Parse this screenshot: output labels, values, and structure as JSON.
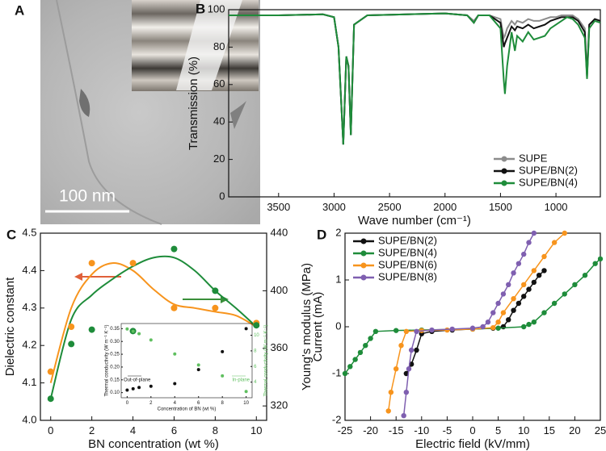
{
  "chart_data": [
    {
      "type": "image",
      "label": "A",
      "scale_bar": "100 nm"
    },
    {
      "type": "line",
      "label": "B",
      "x_label": "Wave number (cm⁻¹)",
      "y_label": "Transmission (%)",
      "x": [
        3950,
        3500,
        3100,
        3000,
        2960,
        2917,
        2890,
        2870,
        2849,
        2820,
        2700,
        2000,
        1800,
        1740,
        1700,
        1600,
        1500,
        1470,
        1460,
        1440,
        1400,
        1370,
        1350,
        1300,
        1250,
        1200,
        1150,
        1100,
        1050,
        1000,
        950,
        900,
        850,
        800,
        740,
        720,
        700,
        650,
        600
      ],
      "xlim": [
        3950,
        600
      ],
      "xticks": [
        3500,
        3000,
        2500,
        2000,
        1500,
        1000
      ],
      "ylim": [
        0,
        100
      ],
      "yticks": [
        0,
        20,
        40,
        60,
        80,
        100
      ],
      "legend": "lower right",
      "series": [
        {
          "name": "SUPE",
          "color": "#8c8c8c",
          "style": "line",
          "values": [
            97,
            97,
            97.5,
            96,
            80,
            28,
            75,
            70,
            33,
            92,
            97,
            98,
            97,
            94,
            97,
            97,
            95,
            85,
            86,
            90,
            94,
            92,
            94,
            93,
            95,
            94,
            94,
            95,
            96,
            96,
            97,
            97,
            97,
            95,
            90,
            65,
            92,
            95,
            94
          ]
        },
        {
          "name": "SUPE/BN(2)",
          "color": "#111111",
          "style": "line",
          "values": [
            97,
            97,
            97.5,
            96,
            80,
            28,
            75,
            70,
            33,
            92,
            97,
            98,
            97,
            93,
            97,
            97,
            93,
            80,
            82,
            85,
            91,
            89,
            91,
            90,
            92,
            90,
            91,
            92,
            94,
            95,
            96,
            96,
            96,
            94,
            88,
            64,
            92,
            95,
            94
          ]
        },
        {
          "name": "SUPE/BN(4)",
          "color": "#1e8c3a",
          "style": "line",
          "values": [
            97,
            97,
            97.5,
            96,
            80,
            28,
            75,
            70,
            33,
            92,
            97,
            98,
            97,
            93,
            97,
            97,
            90,
            62,
            55,
            70,
            88,
            78,
            86,
            83,
            88,
            84,
            85,
            86,
            90,
            92,
            94,
            96,
            95,
            92,
            85,
            63,
            90,
            94,
            93
          ]
        }
      ]
    },
    {
      "type": "scatter",
      "label": "C",
      "x_label": "BN concentration (wt %)",
      "y_label": "Dielectric constant",
      "y2_label": "Young's modulus (MPa)",
      "xlim": [
        -0.5,
        10.5
      ],
      "xticks": [
        0,
        2,
        4,
        6,
        8,
        10
      ],
      "ylim": [
        4.0,
        4.5
      ],
      "yticks": [
        {
          "value": 4.0,
          "label": "4.0"
        },
        4.1,
        4.2,
        4.3,
        4.4,
        4.5
      ],
      "y2lim": [
        310,
        440
      ],
      "y2ticks": [
        320,
        360,
        400,
        440
      ],
      "series": [
        {
          "color": "#f7941d",
          "style": "smooth",
          "x": [
            0,
            1,
            2,
            3,
            4,
            5,
            6,
            7,
            8,
            9,
            10
          ],
          "values": [
            4.1,
            4.3,
            4.39,
            4.42,
            4.4,
            4.35,
            4.31,
            4.3,
            4.29,
            4.28,
            4.25
          ]
        },
        {
          "color": "#1e8c3a",
          "style": "smooth",
          "axis": "y2",
          "x": [
            0,
            1,
            2,
            3,
            4,
            5,
            6,
            7,
            8,
            9,
            10
          ],
          "values": [
            325,
            380,
            397,
            408,
            417,
            423,
            423,
            414,
            400,
            388,
            375
          ]
        },
        {
          "color": "#f7941d",
          "style": "markers",
          "x": [
            0,
            1,
            2,
            4,
            6,
            8,
            10
          ],
          "values": [
            4.13,
            4.25,
            4.42,
            4.42,
            4.3,
            4.3,
            4.26
          ]
        },
        {
          "color": "#1e8c3a",
          "style": "markers",
          "axis": "y2",
          "x": [
            0,
            1,
            2,
            4,
            6,
            8,
            10
          ],
          "values": [
            325,
            363,
            373,
            372,
            429,
            400,
            376
          ]
        }
      ]
    },
    {
      "type": "scatter",
      "x_label": "Concentration of BN (wt %)",
      "y_label": "Thermal conductivity (W m⁻¹ K⁻¹)",
      "y2_label": "Thermal conductivity (W m⁻¹ K⁻¹)",
      "annotations": [
        "Out-of-plane",
        "In-plane"
      ],
      "xlim": [
        -0.5,
        10.5
      ],
      "xticks": [
        0,
        2,
        4,
        6,
        8,
        10
      ],
      "ylim": [
        0.08,
        0.37
      ],
      "yticks": [
        {
          "value": 0.1,
          "label": "0.10"
        },
        0.15,
        {
          "value": 0.2,
          "label": "0.20"
        },
        0.25,
        {
          "value": 0.3,
          "label": "0.30"
        },
        0.35
      ],
      "y2lim": [
        2,
        11.5
      ],
      "y2ticks": [
        4,
        6,
        8,
        10
      ],
      "series": [
        {
          "color": "#111111",
          "style": "markers",
          "x": [
            0,
            0.5,
            1,
            2,
            4,
            6,
            8,
            10
          ],
          "values": [
            0.11,
            0.115,
            0.12,
            0.125,
            0.135,
            0.19,
            0.26,
            0.35
          ]
        },
        {
          "color": "#5fbf5f",
          "style": "markers",
          "axis": "y2",
          "x": [
            0,
            0.5,
            1,
            2,
            4,
            6,
            8,
            10
          ],
          "values": [
            10.8,
            10.5,
            10.2,
            9.4,
            7.6,
            6.2,
            4.8,
            2.8
          ]
        }
      ]
    },
    {
      "type": "scatter",
      "label": "D",
      "x_label": "Electric field (kV/mm)",
      "y_label": "Current (mA)",
      "xlim": [
        -25,
        25
      ],
      "xticks": [
        -25,
        -20,
        -15,
        -10,
        -5,
        0,
        5,
        10,
        15,
        20,
        25
      ],
      "ylim": [
        -2,
        2
      ],
      "yticks": [
        -2,
        -1,
        0,
        1,
        2
      ],
      "legend": "upper left",
      "series": [
        {
          "name": "SUPE/BN(2)",
          "color": "#111111",
          "style": "line+markers",
          "x": [
            -13,
            -12,
            -11,
            -10,
            -8,
            -4,
            0,
            4,
            6,
            7,
            8,
            9,
            10,
            11,
            12,
            13,
            14
          ],
          "values": [
            -1.0,
            -0.8,
            -0.5,
            -0.15,
            -0.1,
            -0.07,
            -0.05,
            -0.03,
            0,
            0.15,
            0.35,
            0.5,
            0.65,
            0.8,
            0.95,
            1.1,
            1.2
          ]
        },
        {
          "name": "SUPE/BN(4)",
          "color": "#1e8c3a",
          "style": "line+markers",
          "x": [
            -25,
            -24,
            -23,
            -22,
            -21,
            -20,
            -19,
            -15,
            -10,
            0,
            5,
            10,
            11,
            12,
            14,
            16,
            18,
            20,
            22,
            24,
            25
          ],
          "values": [
            -1.0,
            -0.85,
            -0.7,
            -0.55,
            -0.4,
            -0.25,
            -0.1,
            -0.08,
            -0.07,
            -0.05,
            -0.03,
            0,
            0.05,
            0.1,
            0.3,
            0.5,
            0.7,
            0.9,
            1.1,
            1.35,
            1.45
          ]
        },
        {
          "name": "SUPE/BN(6)",
          "color": "#f7941d",
          "style": "line+markers",
          "x": [
            -16.5,
            -16,
            -15,
            -14,
            -13,
            -10,
            -5,
            0,
            4,
            5,
            6,
            8,
            10,
            12,
            14,
            16,
            18
          ],
          "values": [
            -1.8,
            -1.4,
            -0.9,
            -0.4,
            -0.1,
            -0.08,
            -0.07,
            -0.05,
            -0.02,
            0.1,
            0.3,
            0.6,
            0.9,
            1.2,
            1.5,
            1.8,
            2.0
          ]
        },
        {
          "name": "SUPE/BN(8)",
          "color": "#7f5fb0",
          "style": "line+markers",
          "x": [
            -13.5,
            -13,
            -12.5,
            -12,
            -11,
            -8,
            -4,
            0,
            2,
            3,
            4,
            5,
            6,
            7,
            8,
            9,
            10,
            11,
            12
          ],
          "values": [
            -1.9,
            -1.4,
            -0.9,
            -0.5,
            -0.1,
            -0.07,
            -0.05,
            -0.03,
            0,
            0.1,
            0.3,
            0.5,
            0.7,
            0.9,
            1.15,
            1.35,
            1.55,
            1.8,
            2.0
          ]
        }
      ]
    }
  ]
}
